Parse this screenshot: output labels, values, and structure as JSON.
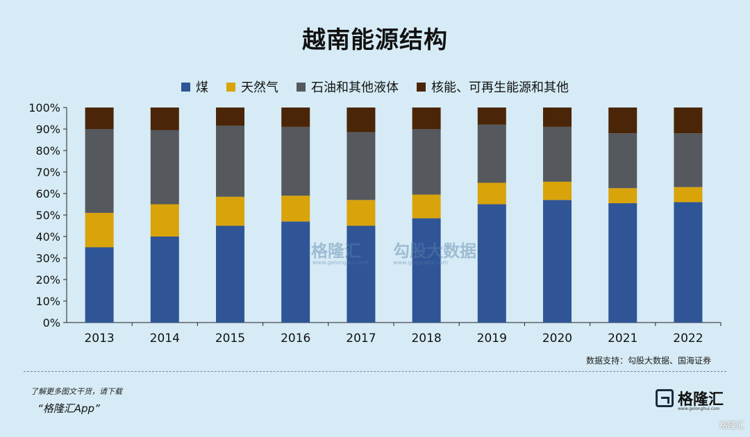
{
  "title": "越南能源结构",
  "legend": [
    {
      "label": "煤",
      "color": "#2f5597"
    },
    {
      "label": "天然气",
      "color": "#d9a30a"
    },
    {
      "label": "石油和其他液体",
      "color": "#55595e"
    },
    {
      "label": "核能、可再生能源和其他",
      "color": "#4a2507"
    }
  ],
  "source": "数据支持：勾股大数据、国海证券",
  "promo_line1": "了解更多图文干货，请下载",
  "promo_line2": "“格隆汇App”",
  "logo_text": "格隆汇",
  "logo_sub": "www.gelonghui.com",
  "corner_mark": "格隆汇",
  "watermarks": {
    "w1": "格隆汇",
    "w1_sub": "www.gelonghui.com",
    "w2": "勾股大数据",
    "w2_sub": "www.gogudata.com"
  },
  "chart_data": {
    "type": "bar",
    "stacked": true,
    "categories": [
      "2013",
      "2014",
      "2015",
      "2016",
      "2017",
      "2018",
      "2019",
      "2020",
      "2021",
      "2022"
    ],
    "series": [
      {
        "name": "煤",
        "color": "#2f5597",
        "values": [
          35,
          40,
          45,
          47,
          45,
          48.5,
          55,
          57,
          55.5,
          56
        ]
      },
      {
        "name": "天然气",
        "color": "#d9a30a",
        "values": [
          16,
          15,
          13.5,
          12,
          12,
          11,
          10,
          8.5,
          7,
          7
        ]
      },
      {
        "name": "石油和其他液体",
        "color": "#55595e",
        "values": [
          39,
          34.5,
          33,
          32,
          31.5,
          30.5,
          27,
          25.5,
          25.5,
          25
        ]
      },
      {
        "name": "核能、可再生能源和其他",
        "color": "#4a2507",
        "values": [
          10,
          10.5,
          8.5,
          9,
          11.5,
          10,
          8,
          9,
          12,
          12
        ]
      }
    ],
    "ylim": [
      0,
      100
    ],
    "yticks": [
      "0%",
      "10%",
      "20%",
      "30%",
      "40%",
      "50%",
      "60%",
      "70%",
      "80%",
      "90%",
      "100%"
    ],
    "grid": false,
    "legend_position": "top"
  }
}
